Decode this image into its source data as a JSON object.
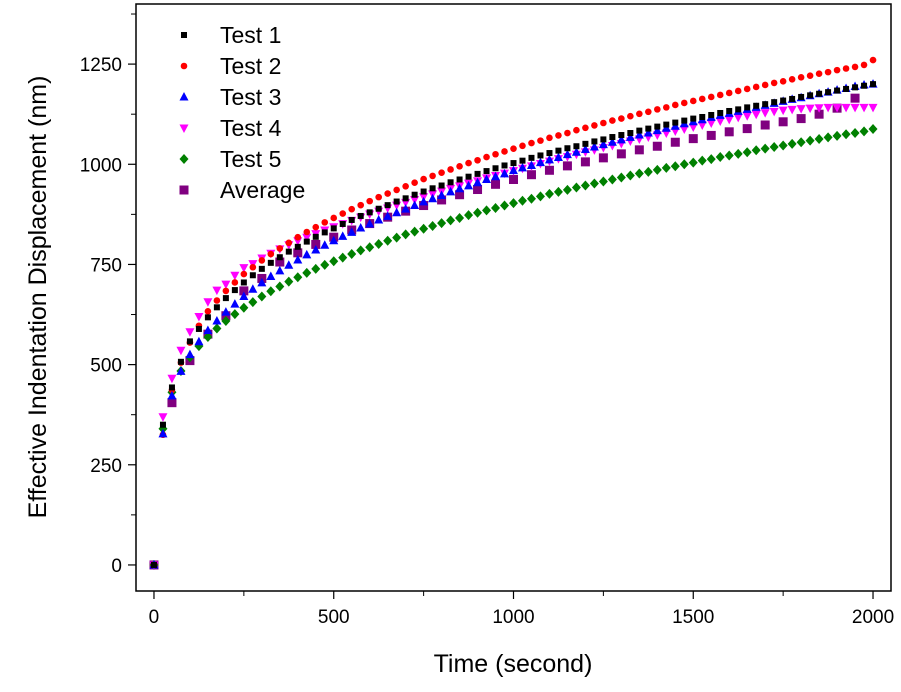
{
  "chart_data": {
    "type": "scatter",
    "title": "",
    "xlabel": "Time (second)",
    "ylabel": "Effective Indentation Displacement (nm)",
    "xlim": [
      -50,
      2050
    ],
    "ylim": [
      -65,
      1400
    ],
    "x_ticks": [
      0,
      500,
      1000,
      1500,
      2000
    ],
    "x_tick_labels": [
      "0",
      "500",
      "1000",
      "1500",
      "2000"
    ],
    "y_ticks": [
      0,
      250,
      500,
      750,
      1000,
      1250
    ],
    "y_tick_labels": [
      "0",
      "250",
      "500",
      "750",
      "1000",
      "1250"
    ],
    "grid": false,
    "legend_position": "top-left",
    "x": [
      0,
      25,
      50,
      75,
      100,
      125,
      150,
      175,
      200,
      225,
      250,
      275,
      300,
      325,
      350,
      375,
      400,
      425,
      450,
      475,
      500,
      525,
      550,
      575,
      600,
      625,
      650,
      675,
      700,
      725,
      750,
      775,
      800,
      825,
      850,
      875,
      900,
      925,
      950,
      975,
      1000,
      1025,
      1050,
      1075,
      1100,
      1125,
      1150,
      1175,
      1200,
      1225,
      1250,
      1275,
      1300,
      1325,
      1350,
      1375,
      1400,
      1425,
      1450,
      1475,
      1500,
      1525,
      1550,
      1575,
      1600,
      1625,
      1650,
      1675,
      1700,
      1725,
      1750,
      1775,
      1800,
      1825,
      1850,
      1875,
      1900,
      1925,
      1950,
      1975,
      2000
    ],
    "series": [
      {
        "name": "Test 1",
        "marker": "square-small",
        "color": "#000000",
        "values": [
          0,
          350,
          443,
          507,
          558,
          589,
          618,
          643,
          666,
          686,
          705,
          723,
          739,
          754,
          768,
          782,
          794,
          807,
          819,
          830,
          840,
          851,
          861,
          871,
          880,
          889,
          898,
          907,
          915,
          924,
          932,
          940,
          947,
          955,
          962,
          969,
          976,
          983,
          990,
          997,
          1003,
          1009,
          1016,
          1022,
          1028,
          1034,
          1040,
          1045,
          1051,
          1057,
          1062,
          1068,
          1073,
          1078,
          1084,
          1089,
          1094,
          1099,
          1104,
          1109,
          1114,
          1118,
          1123,
          1128,
          1133,
          1137,
          1142,
          1146,
          1150,
          1155,
          1159,
          1163,
          1168,
          1172,
          1176,
          1180,
          1184,
          1188,
          1192,
          1196,
          1200
        ]
      },
      {
        "name": "Test 2",
        "marker": "circle",
        "color": "#ff0000",
        "values": [
          0,
          325,
          437,
          505,
          555,
          597,
          633,
          660,
          684,
          705,
          726,
          743,
          760,
          776,
          790,
          804,
          818,
          831,
          843,
          855,
          866,
          877,
          888,
          898,
          908,
          918,
          927,
          936,
          945,
          954,
          963,
          971,
          979,
          987,
          995,
          1003,
          1010,
          1018,
          1025,
          1032,
          1039,
          1046,
          1053,
          1059,
          1066,
          1072,
          1078,
          1085,
          1091,
          1097,
          1103,
          1109,
          1114,
          1120,
          1126,
          1131,
          1137,
          1142,
          1148,
          1153,
          1158,
          1163,
          1168,
          1173,
          1178,
          1183,
          1188,
          1193,
          1198,
          1203,
          1207,
          1212,
          1217,
          1221,
          1226,
          1230,
          1235,
          1239,
          1243,
          1248,
          1260
        ]
      },
      {
        "name": "Test 3",
        "marker": "triangle-up",
        "color": "#0000ff",
        "values": [
          0,
          327,
          422,
          483,
          525,
          557,
          585,
          609,
          631,
          651,
          670,
          688,
          704,
          720,
          734,
          748,
          761,
          774,
          786,
          798,
          809,
          820,
          830,
          841,
          851,
          861,
          870,
          879,
          888,
          897,
          906,
          914,
          922,
          931,
          939,
          946,
          954,
          962,
          969,
          976,
          984,
          991,
          997,
          1004,
          1011,
          1017,
          1024,
          1030,
          1037,
          1043,
          1049,
          1055,
          1061,
          1067,
          1073,
          1078,
          1084,
          1090,
          1095,
          1101,
          1106,
          1111,
          1117,
          1122,
          1127,
          1132,
          1137,
          1142,
          1147,
          1152,
          1157,
          1162,
          1166,
          1171,
          1176,
          1180,
          1185,
          1189,
          1194,
          1198,
          1200
        ]
      },
      {
        "name": "Test 4",
        "marker": "triangle-down",
        "color": "#ff00ff",
        "values": [
          0,
          370,
          466,
          536,
          582,
          620,
          657,
          686,
          701,
          723,
          742,
          752,
          766,
          778,
          789,
          799,
          809,
          818,
          827,
          836,
          844,
          852,
          860,
          868,
          876,
          883,
          891,
          898,
          905,
          912,
          919,
          926,
          933,
          940,
          946,
          953,
          959,
          966,
          972,
          978,
          984,
          990,
          996,
          1002,
          1008,
          1014,
          1019,
          1025,
          1031,
          1036,
          1042,
          1047,
          1052,
          1058,
          1063,
          1068,
          1073,
          1078,
          1083,
          1088,
          1093,
          1098,
          1103,
          1108,
          1112,
          1117,
          1121,
          1125,
          1129,
          1132,
          1135,
          1137,
          1139,
          1140,
          1141,
          1142,
          1142,
          1142,
          1142,
          1142,
          1142
        ]
      },
      {
        "name": "Test 5",
        "marker": "diamond",
        "color": "#008000",
        "values": [
          0,
          340,
          431,
          484,
          518,
          546,
          569,
          590,
          609,
          626,
          642,
          656,
          670,
          683,
          695,
          707,
          718,
          729,
          739,
          749,
          758,
          767,
          776,
          785,
          793,
          801,
          809,
          817,
          825,
          832,
          839,
          846,
          853,
          860,
          866,
          873,
          879,
          885,
          891,
          897,
          903,
          909,
          914,
          920,
          926,
          931,
          936,
          942,
          947,
          952,
          957,
          962,
          967,
          972,
          977,
          981,
          986,
          991,
          995,
          1000,
          1004,
          1009,
          1013,
          1018,
          1022,
          1026,
          1030,
          1035,
          1039,
          1043,
          1047,
          1051,
          1055,
          1059,
          1063,
          1067,
          1071,
          1075,
          1078,
          1082,
          1088
        ]
      },
      {
        "name": "Average",
        "marker": "square",
        "color": "#800080",
        "x": [
          0,
          50,
          100,
          150,
          200,
          250,
          300,
          350,
          400,
          450,
          500,
          550,
          600,
          650,
          700,
          750,
          800,
          850,
          900,
          950,
          1000,
          1050,
          1100,
          1150,
          1200,
          1250,
          1300,
          1350,
          1400,
          1450,
          1500,
          1550,
          1600,
          1650,
          1700,
          1750,
          1800,
          1850,
          1900,
          1950
        ],
        "values": [
          0,
          405,
          510,
          576,
          622,
          684,
          715,
          756,
          779,
          800,
          818,
          836,
          852,
          868,
          883,
          897,
          911,
          924,
          937,
          950,
          962,
          974,
          985,
          996,
          1006,
          1016,
          1026,
          1036,
          1045,
          1055,
          1064,
          1072,
          1081,
          1089,
          1098,
          1106,
          1114,
          1125,
          1140,
          1165
        ]
      }
    ]
  }
}
